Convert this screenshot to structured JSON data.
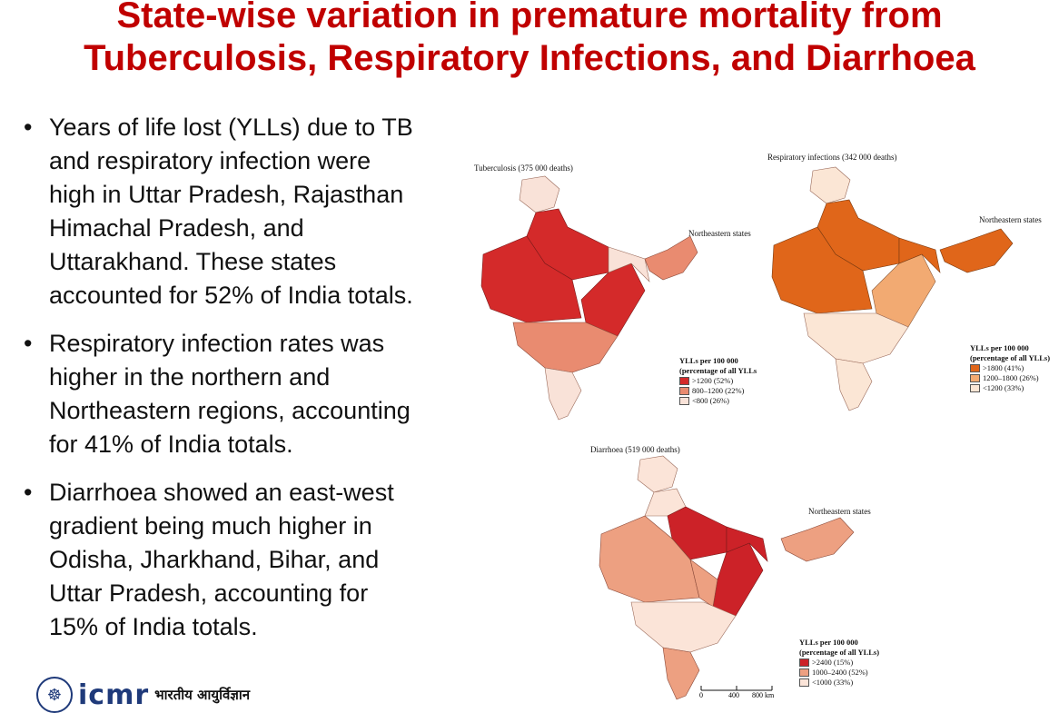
{
  "title": {
    "line1": "State-wise variation in premature mortality from",
    "line2": "Tuberculosis, Respiratory Infections, and Diarrhoea"
  },
  "bullets": [
    [
      "Years of life lost (YLLs) due to TB",
      "and respiratory infection were",
      "high in Uttar Pradesh, Rajasthan",
      "Himachal Pradesh, and",
      "Uttarakhand. These states",
      "accounted for 52% of India totals."
    ],
    [
      "Respiratory infection rates was",
      "higher in the northern and",
      "Northeastern regions, accounting",
      "for  41% of India totals."
    ],
    [
      "Diarrhoea showed an east-west",
      "gradient being much higher in",
      "Odisha, Jharkhand, Bihar, and",
      "Uttar Pradesh, accounting for",
      "15% of India totals."
    ]
  ],
  "maps": {
    "tb": {
      "title": "Tuberculosis (375 000 deaths)",
      "ne_label": "Northeastern states",
      "legend_title1": "YLLs per 100 000",
      "legend_title2": "(percentage of all YLLs",
      "items": [
        {
          "label": ">1200 (52%)",
          "color": "#d42a2a"
        },
        {
          "label": "800–1200 (22%)",
          "color": "#e98b70"
        },
        {
          "label": "<800 (26%)",
          "color": "#f9e2d8"
        }
      ]
    },
    "resp": {
      "title": "Respiratory infections (342 000 deaths)",
      "ne_label": "Northeastern states",
      "legend_title1": "YLLs per 100 000",
      "legend_title2": "(percentage of all YLLs)",
      "items": [
        {
          "label": ">1800 (41%)",
          "color": "#e0661a"
        },
        {
          "label": "1200–1800 (26%)",
          "color": "#f2aa72"
        },
        {
          "label": "<1200 (33%)",
          "color": "#fbe6d5"
        }
      ]
    },
    "diar": {
      "title": "Diarrhoea (519 000 deaths)",
      "ne_label": "Northeastern states",
      "legend_title1": "YLLs per 100 000",
      "legend_title2": "(percentage of all YLLs)",
      "items": [
        {
          "label": ">2400 (15%)",
          "color": "#cc2228"
        },
        {
          "label": "1000–2400 (52%)",
          "color": "#eda081"
        },
        {
          "label": "<1000 (33%)",
          "color": "#fbe4d8"
        }
      ]
    }
  },
  "scale": {
    "zero": "0",
    "mid": "400",
    "end": "800 km"
  },
  "footer": {
    "logo": "icmr",
    "hindi": "भारतीय आयुर्विज्ञान"
  }
}
